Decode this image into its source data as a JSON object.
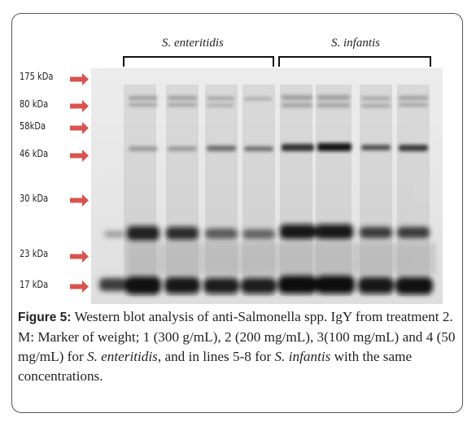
{
  "groups": [
    {
      "label": "S. enteritidis"
    },
    {
      "label": "S. infantis"
    }
  ],
  "markers": [
    {
      "label": "175 kDa"
    },
    {
      "label": "80 kDa"
    },
    {
      "label": "58kDa"
    },
    {
      "label": "46 kDa"
    },
    {
      "label": "30 kDa"
    },
    {
      "label": "23 kDa"
    },
    {
      "label": "17 kDa"
    }
  ],
  "caption": {
    "figure_label": "Figure 5:",
    "part1": " Western blot analysis of anti-Salmonella spp. IgY from treatment 2. M: Marker of weight; 1 (300 g/mL), 2 (200 mg/mL), 3(100 mg/mL) and 4 (50 mg/mL) for ",
    "species1": "S. enteritidis",
    "part2": ", and in lines 5-8 for ",
    "species2": "S. infantis",
    "part3": " with the same concentrations."
  },
  "colors": {
    "arrow": "#d9534f",
    "band": "#1a1a1a",
    "membrane": "#e9e9e9"
  }
}
